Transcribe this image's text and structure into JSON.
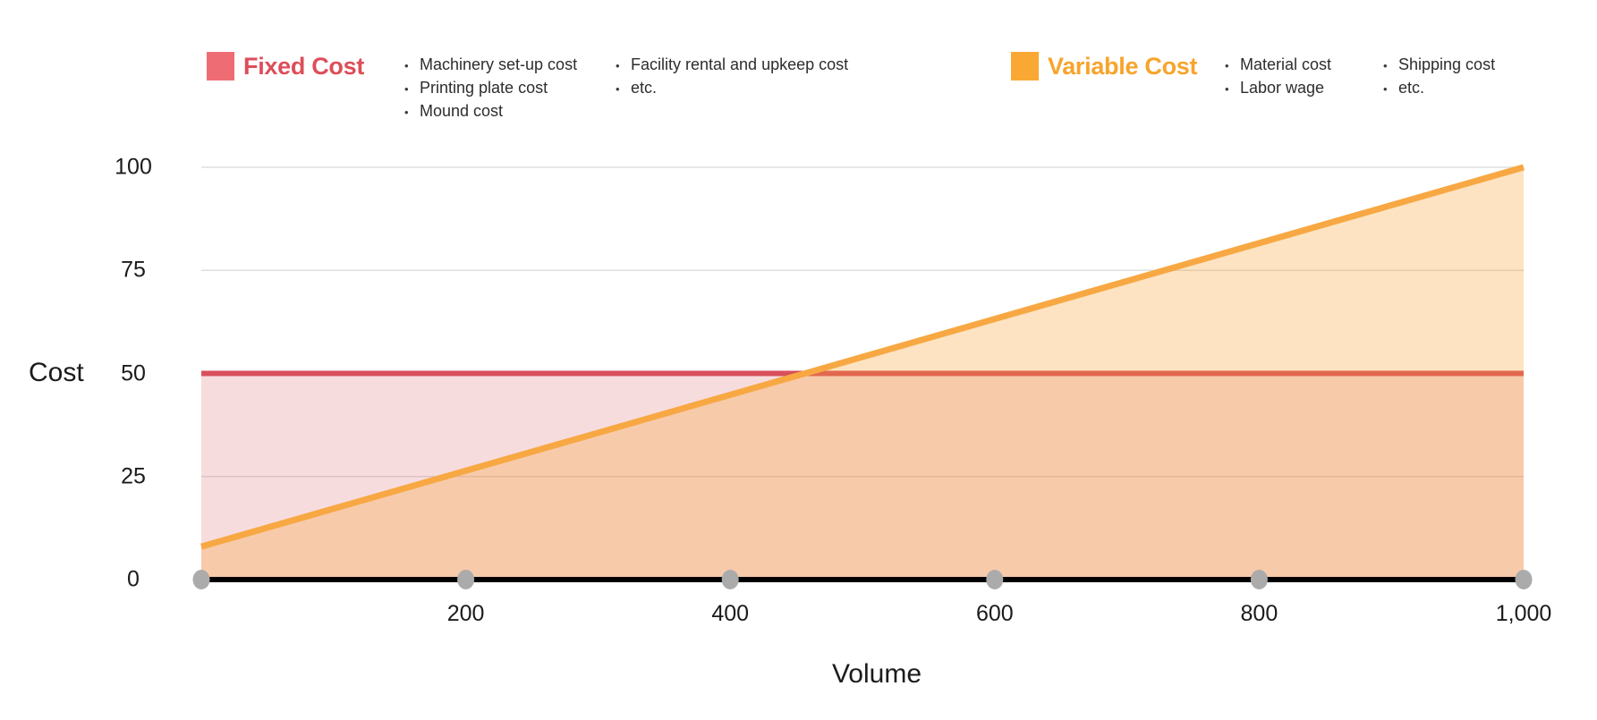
{
  "legend": {
    "fixed": {
      "title": "Fixed Cost",
      "swatch_color": "#EE6D74",
      "title_color": "#DD4E59",
      "columns": [
        [
          "Machinery set-up cost",
          "Printing plate cost",
          "Mound cost"
        ],
        [
          "Facility rental and upkeep cost",
          "etc."
        ]
      ]
    },
    "variable": {
      "title": "Variable Cost",
      "swatch_color": "#F9A833",
      "title_color": "#F7A42C",
      "columns": [
        [
          "Material cost",
          "Labor wage"
        ],
        [
          "Shipping cost",
          "etc."
        ]
      ]
    }
  },
  "chart_data": {
    "type": "area",
    "title": "",
    "xlabel": "Volume",
    "ylabel": "Cost",
    "xlim": [
      0,
      1000
    ],
    "ylim": [
      0,
      100
    ],
    "x_ticks": [
      200,
      400,
      600,
      800,
      1000
    ],
    "x_tick_labels": [
      "200",
      "400",
      "600",
      "800",
      "1,000"
    ],
    "y_ticks": [
      100,
      75,
      50,
      25,
      0
    ],
    "y_tick_labels": [
      "100",
      "75",
      "50",
      "25",
      "0"
    ],
    "y_gridlines": [
      25,
      50,
      75,
      100
    ],
    "grid": true,
    "legend_position": "top",
    "series": [
      {
        "name": "Fixed Cost",
        "x": [
          0,
          1000
        ],
        "y": [
          50,
          50
        ],
        "line_color": "#D7505B",
        "fill_color": "rgba(215,80,90,0.20)"
      },
      {
        "name": "Variable Cost",
        "x": [
          0,
          1000
        ],
        "y": [
          8,
          100
        ],
        "line_color": "#F7A843",
        "fill_color": "rgba(247,163,50,0.30)"
      }
    ],
    "break_even_volume": 457,
    "axis_color": "#000000",
    "axis_dot_color": "#ABABAB",
    "gridline_color": "#DDE0E0"
  }
}
